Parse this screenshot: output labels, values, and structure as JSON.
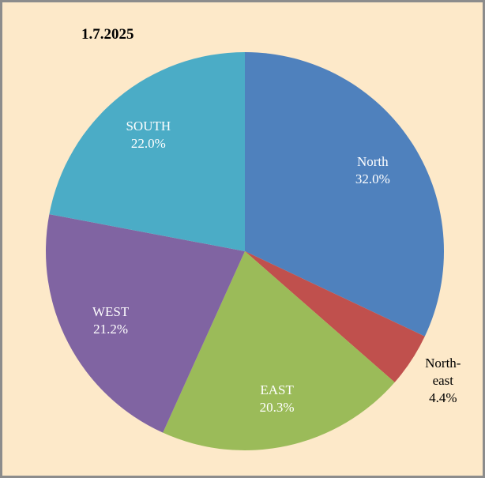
{
  "chart_data": {
    "type": "pie",
    "title": "1.7.2025",
    "categories": [
      "North",
      "North-east",
      "EAST",
      "WEST",
      "SOUTH"
    ],
    "values": [
      32.0,
      4.4,
      20.3,
      21.2,
      22.0
    ],
    "value_labels": [
      "32.0%",
      "4.4%",
      "20.3%",
      "21.2%",
      "22.0%"
    ],
    "colors": [
      "#4f81bd",
      "#c0504d",
      "#9bbb59",
      "#8064a2",
      "#4bacc6"
    ]
  }
}
